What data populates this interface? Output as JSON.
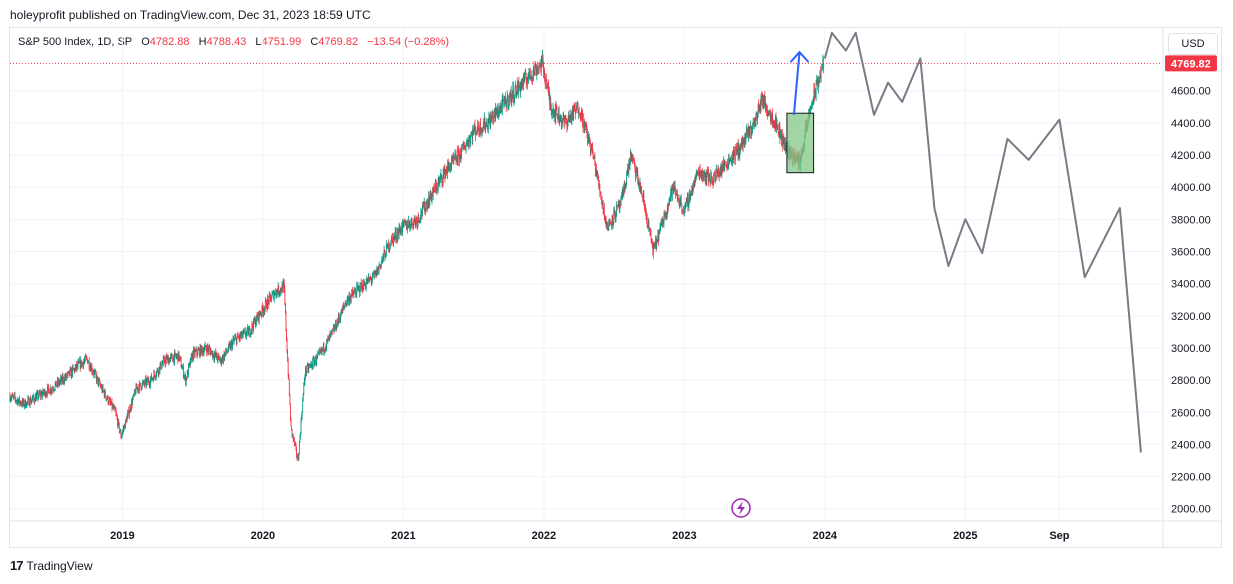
{
  "publisher_line": "holeyprofit published on TradingView.com, Dec 31, 2023 18:59 UTC",
  "legend": {
    "symbol": "S&P 500 Index, 1D, SP",
    "open_label": "O",
    "open": "4782.88",
    "high_label": "H",
    "high": "4788.43",
    "low_label": "L",
    "low": "4751.99",
    "close_label": "C",
    "close": "4769.82",
    "change": "−13.54 (−0.28%)"
  },
  "currency": "USD",
  "last_price_badge": "4769.82",
  "footer_brand": "TradingView",
  "colors": {
    "up": "#089981",
    "down": "#f23645",
    "badge": "#f23645",
    "arrow": "#2962ff",
    "box_fill": "#81c784",
    "projection": "#787b86"
  },
  "chart_data": {
    "type": "line",
    "title": "",
    "xlabel": "",
    "ylabel": "",
    "y_ticks": [
      "2000.00",
      "2200.00",
      "2400.00",
      "2600.00",
      "2800.00",
      "3000.00",
      "3200.00",
      "3400.00",
      "3600.00",
      "3800.00",
      "4000.00",
      "4200.00",
      "4400.00",
      "4600.00"
    ],
    "x_ticks": [
      "2019",
      "2020",
      "2021",
      "2022",
      "2023",
      "2024",
      "2025",
      "Sep"
    ],
    "x_tick_values": [
      2019.0,
      2020.0,
      2021.0,
      2022.0,
      2023.0,
      2024.0,
      2025.0,
      2025.67
    ],
    "ylim": [
      1930,
      4990
    ],
    "xlim": [
      2018.2,
      2026.4
    ],
    "series": [
      {
        "kind": "price",
        "x": [
          2018.2,
          2018.3,
          2018.4,
          2018.5,
          2018.6,
          2018.7,
          2018.75,
          2018.85,
          2018.95,
          2018.99,
          2019.1,
          2019.2,
          2019.3,
          2019.4,
          2019.45,
          2019.5,
          2019.6,
          2019.7,
          2019.8,
          2019.9,
          2019.99,
          2020.09,
          2020.15,
          2020.2,
          2020.25,
          2020.3,
          2020.4,
          2020.5,
          2020.6,
          2020.7,
          2020.8,
          2020.9,
          2020.99,
          2021.1,
          2021.2,
          2021.3,
          2021.4,
          2021.5,
          2021.6,
          2021.7,
          2021.8,
          2021.9,
          2021.99,
          2022.05,
          2022.15,
          2022.25,
          2022.35,
          2022.45,
          2022.55,
          2022.62,
          2022.7,
          2022.78,
          2022.85,
          2022.92,
          2023.0,
          2023.1,
          2023.2,
          2023.3,
          2023.4,
          2023.5,
          2023.55,
          2023.65,
          2023.72,
          2023.82,
          2023.9,
          2023.99
        ],
        "values": [
          2700,
          2650,
          2700,
          2750,
          2820,
          2900,
          2930,
          2750,
          2600,
          2450,
          2750,
          2800,
          2920,
          2950,
          2800,
          2960,
          3000,
          2920,
          3050,
          3100,
          3230,
          3350,
          3380,
          2500,
          2300,
          2850,
          2950,
          3100,
          3300,
          3380,
          3450,
          3650,
          3750,
          3800,
          3950,
          4100,
          4200,
          4350,
          4400,
          4500,
          4600,
          4700,
          4770,
          4500,
          4400,
          4500,
          4200,
          3750,
          3900,
          4200,
          3950,
          3600,
          3800,
          4000,
          3850,
          4100,
          4050,
          4150,
          4250,
          4400,
          4550,
          4400,
          4250,
          4150,
          4500,
          4770
        ]
      },
      {
        "kind": "projection",
        "x": [
          2024.0,
          2024.05,
          2024.15,
          2024.22,
          2024.35,
          2024.45,
          2024.55,
          2024.68,
          2024.78,
          2024.88,
          2025.0,
          2025.12,
          2025.3,
          2025.45,
          2025.67,
          2025.85,
          2026.1,
          2026.25
        ],
        "values": [
          4800,
          4960,
          4850,
          4960,
          4450,
          4650,
          4530,
          4800,
          3870,
          3510,
          3800,
          3590,
          4300,
          4170,
          4420,
          3440,
          3870,
          2350
        ]
      }
    ],
    "last_price": 4769.82,
    "annotations": {
      "box": {
        "x0": 2023.73,
        "x1": 2023.92,
        "y0": 4090,
        "y1": 4460
      },
      "arrow": {
        "x0": 2023.78,
        "y0": 4450,
        "x1": 2023.82,
        "y1": 4840
      }
    }
  }
}
